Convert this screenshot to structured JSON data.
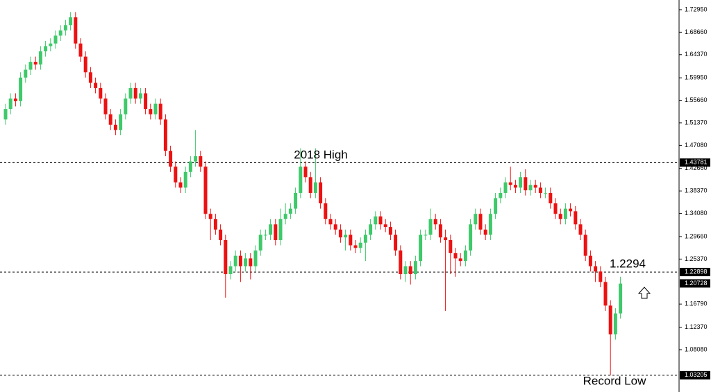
{
  "chart_data": {
    "type": "candlestick",
    "up_color": "#3ec96a",
    "down_color": "#ee1111",
    "ylim": [
      1.0133,
      1.748
    ],
    "yticks": [
      {
        "value": 1.7295,
        "label": "1.72950"
      },
      {
        "value": 1.6866,
        "label": "1.68660"
      },
      {
        "value": 1.6437,
        "label": "1.64370"
      },
      {
        "value": 1.5995,
        "label": "1.59950"
      },
      {
        "value": 1.5566,
        "label": "1.55660"
      },
      {
        "value": 1.5137,
        "label": "1.51370"
      },
      {
        "value": 1.4708,
        "label": "1.47080"
      },
      {
        "value": 1.4266,
        "label": "1.42660"
      },
      {
        "value": 1.3837,
        "label": "1.38370"
      },
      {
        "value": 1.3408,
        "label": "1.34080"
      },
      {
        "value": 1.2966,
        "label": "1.29660"
      },
      {
        "value": 1.2537,
        "label": "1.25370"
      },
      {
        "value": 1.1679,
        "label": "1.16790"
      },
      {
        "value": 1.1237,
        "label": "1.12370"
      },
      {
        "value": 1.0808,
        "label": "1.08080"
      }
    ],
    "hlines": [
      {
        "value": 1.43781,
        "label": "1.43781"
      },
      {
        "value": 1.22898,
        "label": "1.22898"
      },
      {
        "value": 1.03205,
        "label": "1.03205"
      }
    ],
    "current_price": {
      "value": 1.20728,
      "label": "1.20728"
    },
    "annotations": [
      "2018 High",
      "1.2294",
      "Record Low"
    ],
    "open": [
      1.52,
      1.54,
      1.56,
      1.555,
      1.6,
      1.615,
      1.63,
      1.625,
      1.65,
      1.66,
      1.665,
      1.68,
      1.69,
      1.7,
      1.715,
      1.665,
      1.64,
      1.61,
      1.59,
      1.58,
      1.56,
      1.53,
      1.51,
      1.5,
      1.53,
      1.56,
      1.58,
      1.56,
      1.57,
      1.54,
      1.53,
      1.55,
      1.52,
      1.46,
      1.43,
      1.4,
      1.39,
      1.42,
      1.44,
      1.45,
      1.43,
      1.34,
      1.33,
      1.31,
      1.29,
      1.225,
      1.24,
      1.26,
      1.24,
      1.255,
      1.24,
      1.27,
      1.3,
      1.3,
      1.32,
      1.29,
      1.33,
      1.34,
      1.35,
      1.38,
      1.43,
      1.41,
      1.38,
      1.4,
      1.36,
      1.33,
      1.32,
      1.31,
      1.295,
      1.3,
      1.28,
      1.275,
      1.285,
      1.3,
      1.32,
      1.335,
      1.32,
      1.315,
      1.3,
      1.27,
      1.225,
      1.24,
      1.225,
      1.25,
      1.3,
      1.3,
      1.33,
      1.32,
      1.295,
      1.29,
      1.265,
      1.255,
      1.25,
      1.27,
      1.32,
      1.34,
      1.31,
      1.3,
      1.34,
      1.37,
      1.38,
      1.4,
      1.395,
      1.39,
      1.41,
      1.385,
      1.395,
      1.39,
      1.38,
      1.38,
      1.36,
      1.34,
      1.33,
      1.35,
      1.345,
      1.32,
      1.3,
      1.26,
      1.24,
      1.23,
      1.21,
      1.165,
      1.11,
      1.15
    ],
    "high": [
      1.55,
      1.57,
      1.57,
      1.61,
      1.625,
      1.64,
      1.64,
      1.66,
      1.67,
      1.675,
      1.69,
      1.7,
      1.71,
      1.725,
      1.725,
      1.675,
      1.65,
      1.62,
      1.6,
      1.59,
      1.57,
      1.54,
      1.52,
      1.54,
      1.57,
      1.59,
      1.59,
      1.58,
      1.58,
      1.55,
      1.56,
      1.56,
      1.53,
      1.47,
      1.44,
      1.41,
      1.43,
      1.45,
      1.5,
      1.46,
      1.44,
      1.35,
      1.34,
      1.32,
      1.3,
      1.25,
      1.27,
      1.27,
      1.265,
      1.265,
      1.28,
      1.31,
      1.31,
      1.33,
      1.33,
      1.35,
      1.36,
      1.36,
      1.39,
      1.465,
      1.44,
      1.42,
      1.465,
      1.41,
      1.37,
      1.34,
      1.33,
      1.32,
      1.31,
      1.31,
      1.29,
      1.295,
      1.31,
      1.33,
      1.345,
      1.345,
      1.33,
      1.325,
      1.31,
      1.28,
      1.25,
      1.25,
      1.26,
      1.31,
      1.31,
      1.35,
      1.34,
      1.33,
      1.31,
      1.3,
      1.275,
      1.265,
      1.28,
      1.33,
      1.35,
      1.35,
      1.32,
      1.35,
      1.38,
      1.39,
      1.41,
      1.43,
      1.405,
      1.42,
      1.425,
      1.405,
      1.405,
      1.4,
      1.39,
      1.39,
      1.37,
      1.35,
      1.36,
      1.36,
      1.355,
      1.33,
      1.31,
      1.27,
      1.25,
      1.24,
      1.22,
      1.175,
      1.16,
      1.22
    ],
    "low": [
      1.51,
      1.53,
      1.545,
      1.545,
      1.59,
      1.605,
      1.615,
      1.615,
      1.64,
      1.65,
      1.655,
      1.67,
      1.68,
      1.69,
      1.655,
      1.63,
      1.6,
      1.58,
      1.57,
      1.55,
      1.52,
      1.5,
      1.49,
      1.49,
      1.52,
      1.55,
      1.55,
      1.55,
      1.53,
      1.52,
      1.52,
      1.51,
      1.45,
      1.42,
      1.39,
      1.38,
      1.38,
      1.41,
      1.43,
      1.42,
      1.33,
      1.29,
      1.3,
      1.28,
      1.18,
      1.215,
      1.23,
      1.21,
      1.23,
      1.215,
      1.23,
      1.26,
      1.29,
      1.29,
      1.28,
      1.28,
      1.32,
      1.33,
      1.34,
      1.37,
      1.4,
      1.37,
      1.37,
      1.35,
      1.32,
      1.31,
      1.3,
      1.285,
      1.27,
      1.27,
      1.265,
      1.265,
      1.25,
      1.29,
      1.31,
      1.31,
      1.305,
      1.29,
      1.26,
      1.215,
      1.21,
      1.205,
      1.215,
      1.24,
      1.29,
      1.29,
      1.31,
      1.285,
      1.155,
      1.225,
      1.22,
      1.24,
      1.24,
      1.26,
      1.31,
      1.3,
      1.29,
      1.29,
      1.33,
      1.36,
      1.37,
      1.385,
      1.38,
      1.38,
      1.375,
      1.375,
      1.38,
      1.37,
      1.37,
      1.35,
      1.33,
      1.32,
      1.32,
      1.335,
      1.31,
      1.29,
      1.25,
      1.23,
      1.21,
      1.2,
      1.155,
      1.032,
      1.1,
      1.14
    ],
    "close": [
      1.54,
      1.56,
      1.555,
      1.6,
      1.615,
      1.63,
      1.625,
      1.65,
      1.66,
      1.665,
      1.68,
      1.69,
      1.7,
      1.715,
      1.665,
      1.64,
      1.61,
      1.59,
      1.58,
      1.56,
      1.53,
      1.51,
      1.5,
      1.53,
      1.56,
      1.58,
      1.56,
      1.57,
      1.54,
      1.53,
      1.55,
      1.52,
      1.46,
      1.43,
      1.4,
      1.39,
      1.42,
      1.44,
      1.45,
      1.43,
      1.34,
      1.33,
      1.31,
      1.29,
      1.225,
      1.24,
      1.26,
      1.24,
      1.255,
      1.24,
      1.27,
      1.3,
      1.3,
      1.32,
      1.29,
      1.33,
      1.34,
      1.35,
      1.38,
      1.43,
      1.41,
      1.38,
      1.4,
      1.36,
      1.33,
      1.32,
      1.31,
      1.295,
      1.3,
      1.28,
      1.275,
      1.285,
      1.3,
      1.32,
      1.335,
      1.32,
      1.315,
      1.3,
      1.27,
      1.225,
      1.24,
      1.225,
      1.25,
      1.3,
      1.3,
      1.33,
      1.32,
      1.295,
      1.29,
      1.265,
      1.255,
      1.25,
      1.27,
      1.32,
      1.34,
      1.31,
      1.3,
      1.34,
      1.37,
      1.38,
      1.4,
      1.395,
      1.39,
      1.41,
      1.385,
      1.395,
      1.39,
      1.38,
      1.38,
      1.36,
      1.34,
      1.33,
      1.35,
      1.345,
      1.32,
      1.3,
      1.26,
      1.24,
      1.23,
      1.21,
      1.165,
      1.11,
      1.15,
      1.207
    ]
  }
}
